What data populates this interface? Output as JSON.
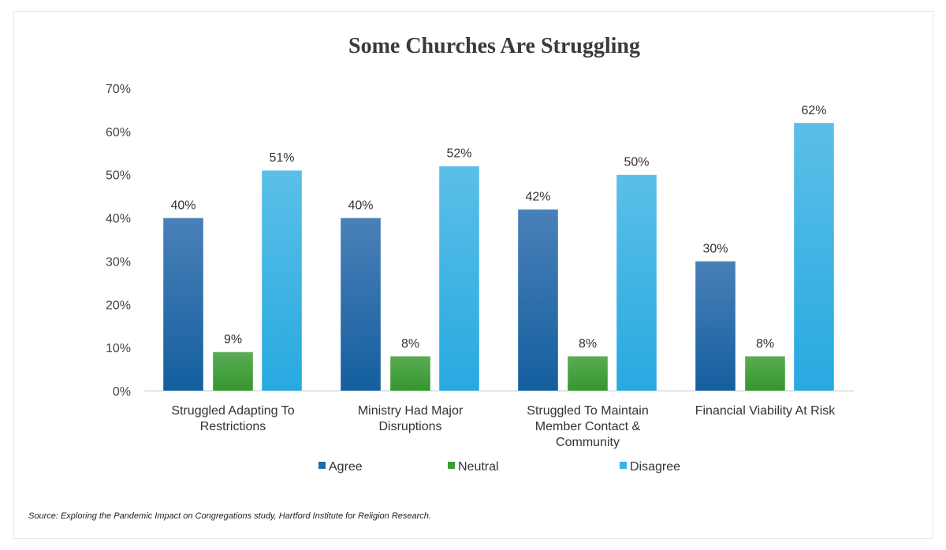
{
  "chart_data": {
    "type": "bar",
    "title": "Some Churches Are Struggling",
    "categories": [
      [
        "Struggled Adapting To",
        "Restrictions"
      ],
      [
        "Ministry Had Major",
        "Disruptions"
      ],
      [
        "Struggled To Maintain",
        "Member Contact &",
        "Community"
      ],
      [
        "Financial Viability At Risk"
      ]
    ],
    "series": [
      {
        "name": "Agree",
        "values": [
          40,
          40,
          42,
          30
        ],
        "color": "#1d6aa8"
      },
      {
        "name": "Neutral",
        "values": [
          9,
          8,
          8,
          8
        ],
        "color": "#3c9e35"
      },
      {
        "name": "Disagree",
        "values": [
          51,
          52,
          50,
          62
        ],
        "color": "#35b4e8"
      }
    ],
    "data_labels": [
      [
        "40%",
        "40%",
        "42%",
        "30%"
      ],
      [
        "9%",
        "8%",
        "8%",
        "8%"
      ],
      [
        "51%",
        "52%",
        "50%",
        "62%"
      ]
    ],
    "ylim": [
      0,
      70
    ],
    "yticks": [
      "0%",
      "10%",
      "20%",
      "30%",
      "40%",
      "50%",
      "60%",
      "70%"
    ],
    "grid": false,
    "legend": "bottom"
  },
  "source": "Source: Exploring the Pandemic Impact on Congregations study, Hartford Institute for Religion Research."
}
